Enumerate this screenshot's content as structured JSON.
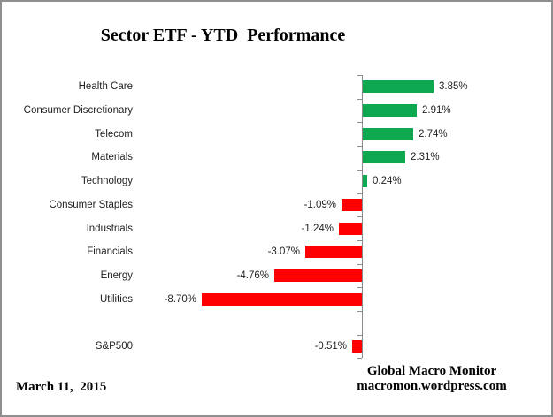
{
  "title": "Sector ETF - YTD  Performance",
  "footer": {
    "date": "March 11,  2015",
    "brand_line1": "Global Macro Monitor",
    "brand_line2": "macromon.wordpress.com"
  },
  "chart_data": {
    "type": "bar",
    "orientation": "horizontal",
    "title": "Sector ETF - YTD  Performance",
    "xlabel": "",
    "ylabel": "",
    "xlim": [
      -10,
      5
    ],
    "grid": false,
    "legend": false,
    "categories": [
      "Health Care",
      "Consumer Discretionary",
      "Telecom",
      "Materials",
      "Technology",
      "Consumer Staples",
      "Industrials",
      "Financials",
      "Energy",
      "Utilities",
      "",
      "S&P500"
    ],
    "values": [
      3.85,
      2.91,
      2.74,
      2.31,
      0.24,
      -1.09,
      -1.24,
      -3.07,
      -4.76,
      -8.7,
      null,
      -0.51
    ],
    "data_labels": [
      "3.85%",
      "2.91%",
      "2.74%",
      "2.31%",
      "0.24%",
      "-1.09%",
      "-1.24%",
      "-3.07%",
      "-4.76%",
      "-8.70%",
      "",
      "-0.51%"
    ],
    "colors": {
      "positive": "#0EA850",
      "negative": "#FE0000",
      "axis": "#8C8C8C",
      "text": "#1F1F1F"
    }
  }
}
